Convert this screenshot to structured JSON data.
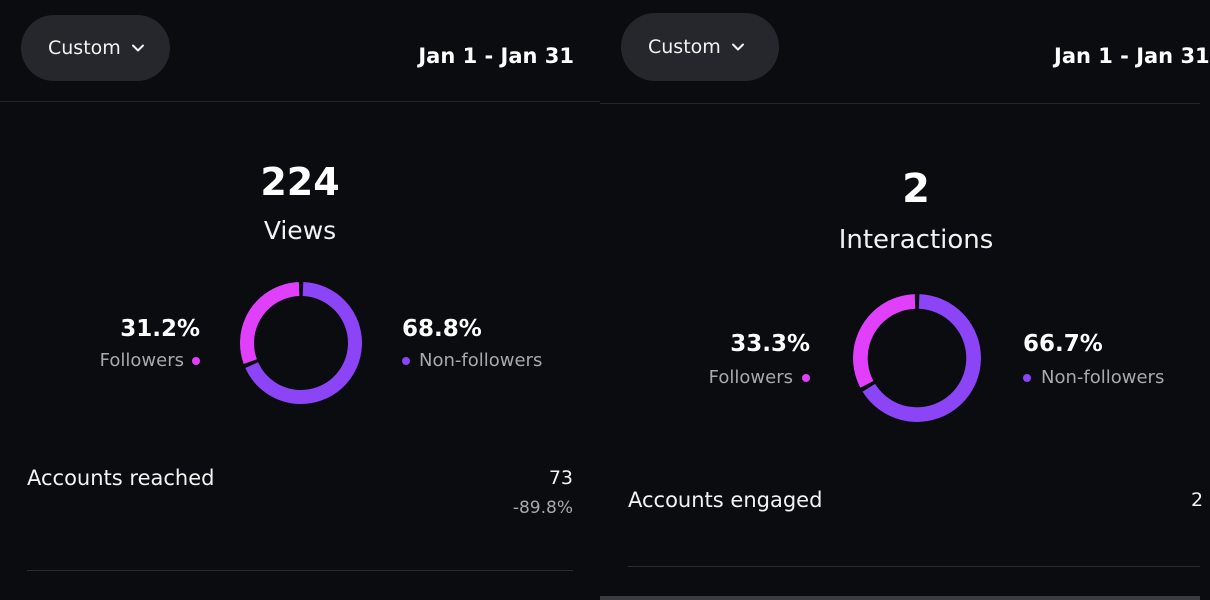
{
  "colors": {
    "background": "#0b0c10",
    "button_bg": "#26272c",
    "followers": "#e040fb",
    "non_followers": "#8c44f7",
    "muted_text": "#a8a9ae"
  },
  "left": {
    "range_button": {
      "label": "Custom",
      "icon": "chevron-down-icon"
    },
    "date_range": "Jan 1 - Jan 31",
    "metric": {
      "value": "224",
      "label": "Views"
    },
    "breakdown": {
      "followers_pct": "31.2%",
      "followers_label": "Followers",
      "non_followers_pct": "68.8%",
      "non_followers_label": "Non-followers",
      "followers_share": 0.312
    },
    "row": {
      "label": "Accounts reached",
      "value": "73",
      "change": "-89.8%"
    }
  },
  "right": {
    "range_button": {
      "label": "Custom",
      "icon": "chevron-down-icon"
    },
    "date_range": "Jan 1 - Jan 31",
    "metric": {
      "value": "2",
      "label": "Interactions"
    },
    "breakdown": {
      "followers_pct": "33.3%",
      "followers_label": "Followers",
      "non_followers_pct": "66.7%",
      "non_followers_label": "Non-followers",
      "followers_share": 0.333
    },
    "row": {
      "label": "Accounts engaged",
      "value": "2"
    }
  }
}
